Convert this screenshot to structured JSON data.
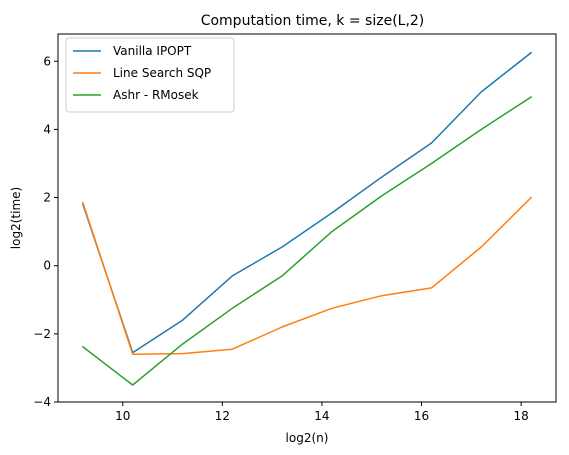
{
  "chart_data": {
    "type": "line",
    "title": "Computation time, k = size(L,2)",
    "xlabel": "log2(n)",
    "ylabel": "log2(time)",
    "xlim": [
      8.7,
      18.7
    ],
    "ylim": [
      -4,
      6.8
    ],
    "xticks": [
      10,
      12,
      14,
      16,
      18
    ],
    "yticks": [
      -4,
      -2,
      0,
      2,
      4,
      6
    ],
    "x": [
      9.2,
      10.2,
      11.2,
      12.2,
      13.2,
      14.2,
      15.2,
      16.2,
      17.2,
      18.2
    ],
    "series": [
      {
        "name": "Vanilla IPOPT",
        "color": "#1f77b4",
        "values": [
          1.8,
          -2.55,
          -1.6,
          -0.3,
          0.55,
          1.55,
          2.6,
          3.6,
          5.1,
          6.25
        ]
      },
      {
        "name": "Line Search SQP",
        "color": "#ff7f0e",
        "values": [
          1.85,
          -2.6,
          -2.58,
          -2.45,
          -1.8,
          -1.25,
          -0.88,
          -0.65,
          0.55,
          2.0
        ]
      },
      {
        "name": "Ashr - RMosek",
        "color": "#2ca02c",
        "values": [
          -2.38,
          -3.5,
          -2.3,
          -1.25,
          -0.3,
          1.0,
          2.05,
          3.0,
          4.0,
          4.95
        ]
      }
    ],
    "grid": false,
    "legend": "top-left"
  }
}
